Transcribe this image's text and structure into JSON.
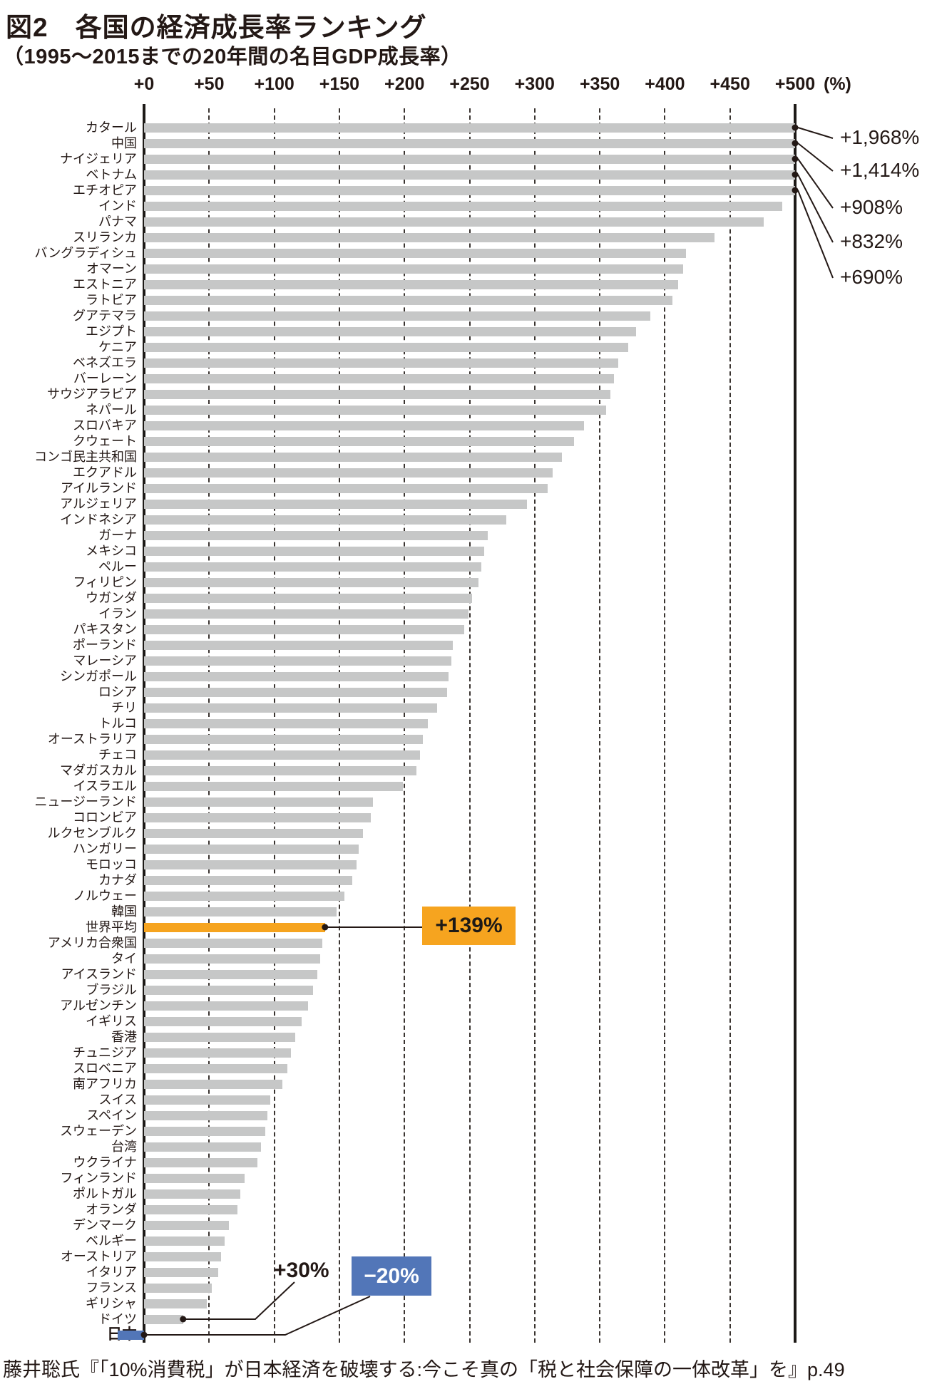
{
  "chart_data": {
    "type": "bar",
    "orientation": "horizontal",
    "title": "図2　各国の経済成長率ランキング",
    "subtitle": "（1995～2015までの20年間の名目GDP成長率）",
    "source": "藤井聡氏『「10%消費税」が日本経済を破壊する:今こそ真の「税と社会保障の一体改革」を』p.49",
    "unit": "(%)",
    "xlim": [
      0,
      500
    ],
    "x_tick_values": [
      0,
      50,
      100,
      150,
      200,
      250,
      300,
      350,
      400,
      450,
      500
    ],
    "x_tick_labels": [
      "+0",
      "+50",
      "+100",
      "+150",
      "+200",
      "+250",
      "+300",
      "+350",
      "+400",
      "+450",
      "+500"
    ],
    "grid": "dashed-vertical",
    "categories": [
      "カタール",
      "中国",
      "ナイジェリア",
      "ベトナム",
      "エチオピア",
      "インド",
      "パナマ",
      "スリランカ",
      "バングラディシュ",
      "オマーン",
      "エストニア",
      "ラトビア",
      "グアテマラ",
      "エジプト",
      "ケニア",
      "ベネズエラ",
      "バーレーン",
      "サウジアラビア",
      "ネパール",
      "スロバキア",
      "クウェート",
      "コンゴ民主共和国",
      "エクアドル",
      "アイルランド",
      "アルジェリア",
      "インドネシア",
      "ガーナ",
      "メキシコ",
      "ペルー",
      "フィリピン",
      "ウガンダ",
      "イラン",
      "パキスタン",
      "ポーランド",
      "マレーシア",
      "シンガポール",
      "ロシア",
      "チリ",
      "トルコ",
      "オーストラリア",
      "チェコ",
      "マダガスカル",
      "イスラエル",
      "ニュージーランド",
      "コロンビア",
      "ルクセンブルク",
      "ハンガリー",
      "モロッコ",
      "カナダ",
      "ノルウェー",
      "韓国",
      "世界平均",
      "アメリカ合衆国",
      "タイ",
      "アイスランド",
      "ブラジル",
      "アルゼンチン",
      "イギリス",
      "香港",
      "チュニジア",
      "スロベニア",
      "南アフリカ",
      "スイス",
      "スペイン",
      "スウェーデン",
      "台湾",
      "ウクライナ",
      "フィンランド",
      "ポルトガル",
      "オランダ",
      "デンマーク",
      "ベルギー",
      "オーストリア",
      "イタリア",
      "フランス",
      "ギリシャ",
      "ドイツ",
      "日本"
    ],
    "values": [
      1968,
      1414,
      908,
      832,
      690,
      490,
      476,
      438,
      416,
      414,
      410,
      406,
      389,
      378,
      372,
      364,
      361,
      358,
      355,
      338,
      330,
      321,
      314,
      310,
      294,
      278,
      264,
      261,
      259,
      257,
      252,
      249,
      246,
      237,
      236,
      234,
      233,
      225,
      218,
      214,
      212,
      209,
      199,
      176,
      174,
      168,
      165,
      163,
      160,
      154,
      148,
      139,
      137,
      135,
      133,
      130,
      126,
      121,
      116,
      113,
      110,
      106,
      97,
      95,
      93,
      90,
      87,
      77,
      74,
      72,
      65,
      62,
      59,
      57,
      52,
      48,
      30,
      -20
    ],
    "bar_color_default": "#c6c7c7",
    "highlight_colors": {
      "世界平均": "#f6a41f",
      "日本": "#5276b8"
    },
    "overflow_callouts": [
      {
        "category": "カタール",
        "label": "+1,968%"
      },
      {
        "category": "中国",
        "label": "+1,414%"
      },
      {
        "category": "ナイジェリア",
        "label": "+908%"
      },
      {
        "category": "ベトナム",
        "label": "+832%"
      },
      {
        "category": "エチオピア",
        "label": "+690%"
      }
    ],
    "annotations": {
      "world_average": {
        "category": "世界平均",
        "label": "+139%",
        "style": "orange-box"
      },
      "germany": {
        "category": "ドイツ",
        "label": "+30%",
        "style": "plain-text"
      },
      "japan": {
        "category": "日本",
        "label": "−20%",
        "style": "blue-box"
      }
    }
  }
}
